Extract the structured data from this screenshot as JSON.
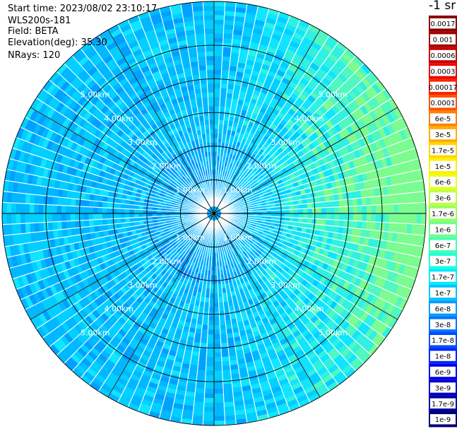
{
  "info": {
    "start_time": "Start time: 2023/08/02 23:10:17",
    "instrument": "WLS200s-181",
    "field": "Field: BETA",
    "elevation": "Elevation(deg): 35.30",
    "nrays": "NRays: 120"
  },
  "chart_data": {
    "type": "heatmap",
    "projection": "polar (PPI scan)",
    "range_ring_labels": [
      "1.00km",
      "2.00km",
      "3.00km",
      "4.00km",
      "5.00km"
    ],
    "range_rings_km": [
      1,
      2,
      3,
      4,
      5
    ],
    "max_range_km": 6.3,
    "n_rays": 120,
    "spoke_angles_deg": [
      0,
      30,
      60,
      90,
      120,
      150
    ],
    "colorbar_unit": "-1 sr",
    "colorbar": [
      {
        "label": "0.0017",
        "color": "#8b0000"
      },
      {
        "label": "0.001",
        "color": "#a30000"
      },
      {
        "label": "0.0006",
        "color": "#c80000"
      },
      {
        "label": "0.0003",
        "color": "#ee0000"
      },
      {
        "label": "0.00017",
        "color": "#ff2200"
      },
      {
        "label": "0.0001",
        "color": "#ff5200"
      },
      {
        "label": "6e-5",
        "color": "#ff8000"
      },
      {
        "label": "3e-5",
        "color": "#ffad00"
      },
      {
        "label": "1.7e-5",
        "color": "#ffd700"
      },
      {
        "label": "1e-5",
        "color": "#fff000"
      },
      {
        "label": "6e-6",
        "color": "#e8ff20"
      },
      {
        "label": "3e-6",
        "color": "#c0ff40"
      },
      {
        "label": "1.7e-6",
        "color": "#98ff60"
      },
      {
        "label": "1e-6",
        "color": "#70ff8c"
      },
      {
        "label": "6e-7",
        "color": "#48ffb4"
      },
      {
        "label": "3e-7",
        "color": "#20ffd8"
      },
      {
        "label": "1.7e-7",
        "color": "#00ecff"
      },
      {
        "label": "1e-7",
        "color": "#00c4ff"
      },
      {
        "label": "6e-8",
        "color": "#009cff"
      },
      {
        "label": "3e-8",
        "color": "#0074ff"
      },
      {
        "label": "1.7e-8",
        "color": "#004cff"
      },
      {
        "label": "1e-8",
        "color": "#0024ff"
      },
      {
        "label": "6e-9",
        "color": "#0000f0"
      },
      {
        "label": "3e-9",
        "color": "#0000c8"
      },
      {
        "label": "1.7e-9",
        "color": "#0000a0"
      },
      {
        "label": "1e-9",
        "color": "#000078"
      }
    ]
  }
}
